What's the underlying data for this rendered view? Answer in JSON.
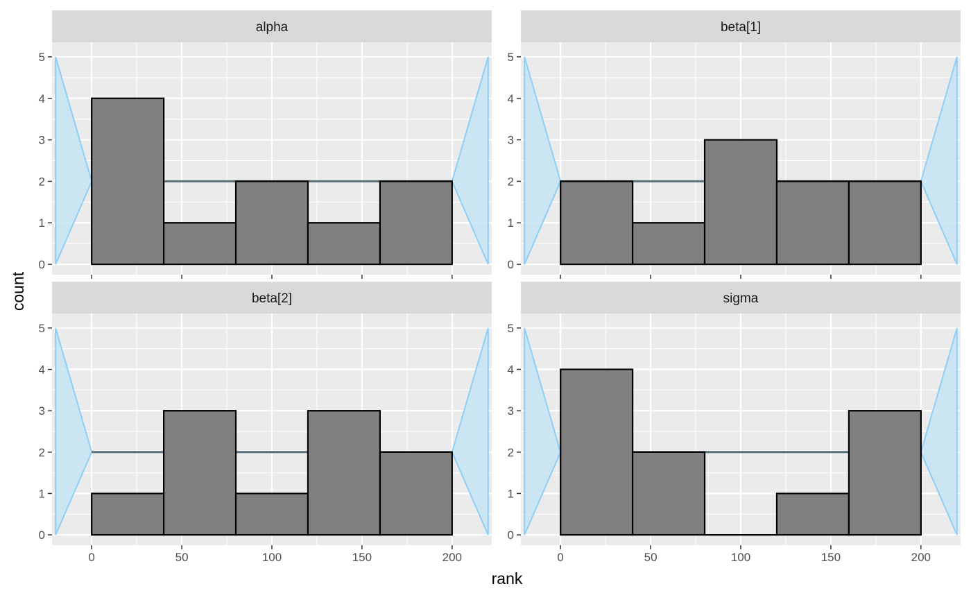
{
  "chart_data": {
    "type": "bar",
    "title": "",
    "xlabel": "rank",
    "ylabel": "count",
    "xlim": [
      -22,
      222
    ],
    "ylim": [
      -0.25,
      5.35
    ],
    "x_ticks": [
      0,
      50,
      100,
      150,
      200
    ],
    "y_ticks": [
      0,
      1,
      2,
      3,
      4,
      5
    ],
    "grid": true,
    "bin_edges": [
      0,
      40,
      80,
      120,
      160,
      200
    ],
    "reference_line": 2,
    "band_polygon": [
      [
        -20,
        0
      ],
      [
        0,
        2
      ],
      [
        200,
        2
      ],
      [
        220,
        0
      ],
      [
        220,
        5
      ],
      [
        200,
        2
      ],
      [
        0,
        2
      ],
      [
        -20,
        5
      ]
    ],
    "colors": {
      "panel_background": "#ebebeb",
      "grid": "#ffffff",
      "strip_background": "#d9d9d9",
      "band_fill": "#c6e4f4",
      "band_stroke": "#8ecff8",
      "reference_line": "#5a6e7a",
      "bar_fill": "#808080",
      "bar_stroke": "#000000"
    },
    "panels": [
      {
        "name": "alpha",
        "counts": [
          4,
          1,
          2,
          1,
          2
        ]
      },
      {
        "name": "beta[1]",
        "counts": [
          2,
          1,
          3,
          2,
          2
        ]
      },
      {
        "name": "beta[2]",
        "counts": [
          1,
          3,
          1,
          3,
          2
        ]
      },
      {
        "name": "sigma",
        "counts": [
          4,
          2,
          0,
          1,
          3
        ]
      }
    ]
  }
}
